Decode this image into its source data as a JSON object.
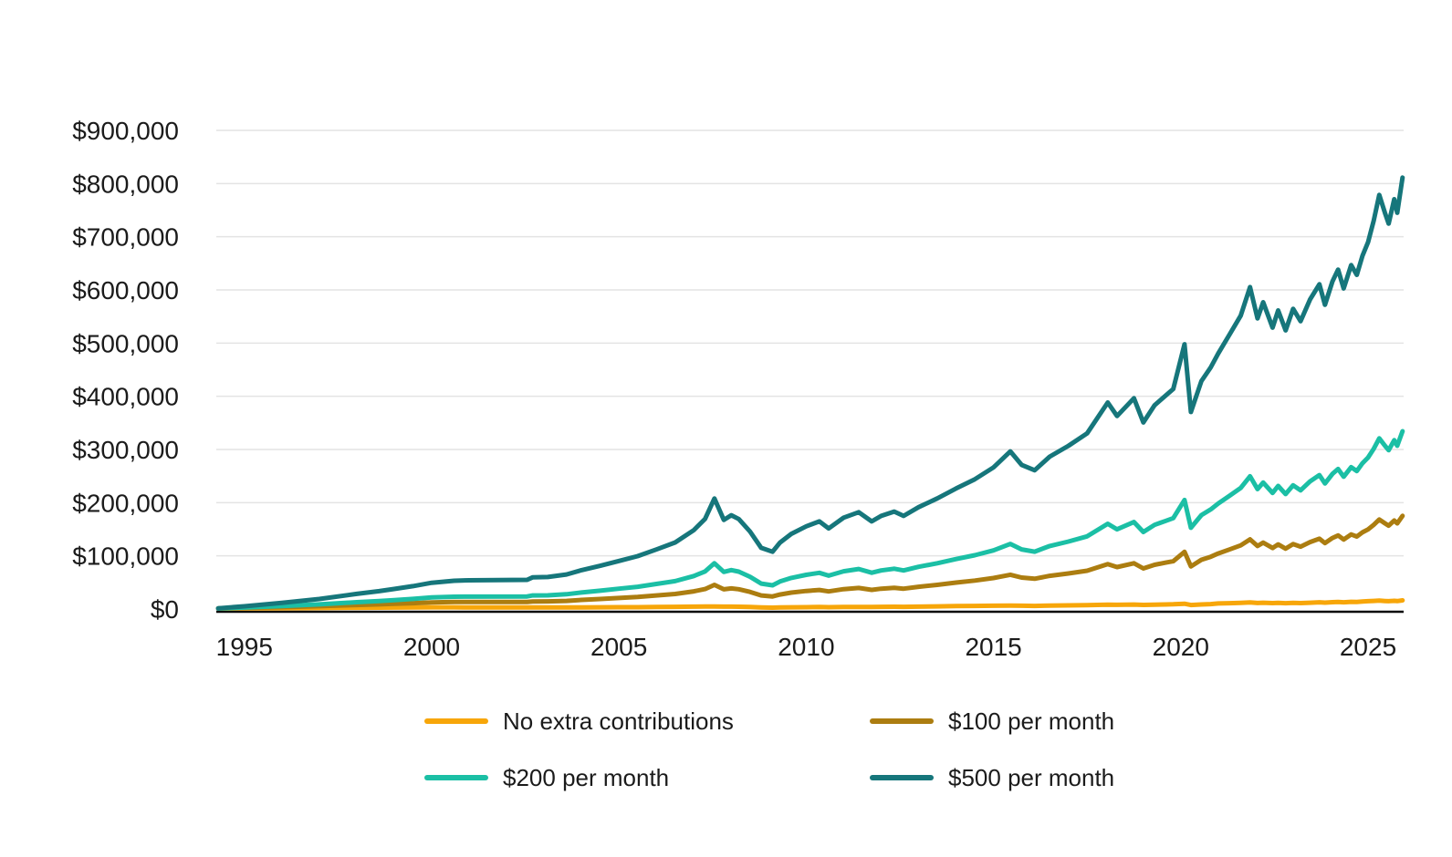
{
  "page": {
    "background_color": "#ffffff",
    "text_color": "#1b1b1b",
    "gridline_color": "#e4e4e4",
    "axis_line_color": "#0b0b0b"
  },
  "chart_data": {
    "type": "line",
    "title": "",
    "xlabel": "",
    "ylabel": "",
    "grid": true,
    "legend_position": "bottom",
    "x_axis": {
      "tick_labels": [
        "1995",
        "2000",
        "2005",
        "2010",
        "2015",
        "2020",
        "2025"
      ],
      "tick_values": [
        1995,
        2000,
        2005,
        2010,
        2015,
        2020,
        2025
      ],
      "range": [
        1994.25,
        2025.95
      ]
    },
    "y_axis": {
      "tick_labels": [
        "$0",
        "$100,000",
        "$200,000",
        "$300,000",
        "$400,000",
        "$500,000",
        "$600,000",
        "$700,000",
        "$800,000",
        "$900,000"
      ],
      "tick_values": [
        0,
        100000,
        200000,
        300000,
        400000,
        500000,
        600000,
        700000,
        800000,
        900000
      ],
      "range": [
        0,
        900000
      ]
    },
    "x": [
      1994.3,
      1995,
      1996,
      1997,
      1998,
      1998.6,
      1999,
      1999.5,
      2000,
      2000.6,
      2001,
      2002.55,
      2002.7,
      2003.1,
      2003.6,
      2004,
      2004.5,
      2005,
      2005.5,
      2006,
      2006.5,
      2007,
      2007.3,
      2007.55,
      2007.8,
      2008,
      2008.2,
      2008.5,
      2008.8,
      2009.1,
      2009.3,
      2009.6,
      2010,
      2010.35,
      2010.6,
      2011,
      2011.4,
      2011.75,
      2012,
      2012.35,
      2012.6,
      2013,
      2013.5,
      2014,
      2014.5,
      2015,
      2015.45,
      2015.75,
      2016.1,
      2016.5,
      2017,
      2017.5,
      2018.05,
      2018.3,
      2018.75,
      2019,
      2019.3,
      2019.6,
      2019.8,
      2020.1,
      2020.27,
      2020.55,
      2020.8,
      2021,
      2021.3,
      2021.6,
      2021.85,
      2022.05,
      2022.2,
      2022.45,
      2022.6,
      2022.8,
      2023,
      2023.2,
      2023.45,
      2023.7,
      2023.85,
      2024.05,
      2024.2,
      2024.35,
      2024.55,
      2024.7,
      2024.85,
      2025,
      2025.15,
      2025.3,
      2025.45,
      2025.55,
      2025.7,
      2025.78,
      2025.92
    ],
    "series": [
      {
        "name": "No extra contributions",
        "color": "#F7A609",
        "values": [
          1000,
          1200,
          1500,
          1900,
          2400,
          2600,
          2800,
          3000,
          3300,
          3200,
          3000,
          2900,
          2900,
          2900,
          2900,
          3100,
          3200,
          3400,
          3500,
          3900,
          4100,
          4400,
          4600,
          4800,
          4500,
          4400,
          4200,
          3800,
          3100,
          2600,
          2900,
          3200,
          3500,
          3700,
          3500,
          3800,
          4000,
          3800,
          4100,
          4200,
          4100,
          4500,
          4900,
          5600,
          5900,
          6200,
          6400,
          6100,
          5900,
          6400,
          6900,
          7400,
          8300,
          7900,
          8400,
          7700,
          8200,
          8600,
          8900,
          9900,
          7500,
          8600,
          9200,
          10400,
          11000,
          11700,
          12400,
          11400,
          11800,
          11100,
          11500,
          10900,
          11500,
          11200,
          11900,
          12600,
          12000,
          12900,
          13300,
          12700,
          13600,
          13300,
          14200,
          14700,
          15200,
          15700,
          15100,
          14700,
          15500,
          15000,
          16200
        ]
      },
      {
        "name": "$100 per month",
        "color": "#AC7D10",
        "values": [
          1100,
          2000,
          3500,
          5300,
          7600,
          8800,
          9800,
          11000,
          12500,
          13200,
          13200,
          13300,
          14300,
          14400,
          15300,
          17100,
          18800,
          20800,
          22700,
          25500,
          28300,
          33200,
          37600,
          45400,
          37100,
          38800,
          37200,
          32200,
          25500,
          23600,
          27300,
          30800,
          33900,
          35900,
          33100,
          37400,
          39600,
          36000,
          38300,
          40000,
          38300,
          41900,
          45500,
          49800,
          53500,
          58200,
          64400,
          59100,
          56900,
          62400,
          66900,
          72000,
          84300,
          78900,
          86000,
          76300,
          83200,
          87200,
          89900,
          107500,
          80100,
          92600,
          98200,
          104400,
          112000,
          119700,
          131000,
          118400,
          124800,
          114700,
          121500,
          113500,
          122100,
          117200,
          125900,
          132200,
          124000,
          133500,
          138300,
          130700,
          140200,
          136300,
          144200,
          149700,
          158200,
          168300,
          161100,
          156700,
          166500,
          161000,
          175200
        ]
      },
      {
        "name": "$200 per month",
        "color": "#1BBFA5",
        "values": [
          1100,
          2800,
          5500,
          8700,
          12800,
          15000,
          16800,
          19000,
          21700,
          23200,
          23400,
          23700,
          25600,
          25800,
          27700,
          31100,
          34400,
          38200,
          41900,
          47100,
          52500,
          62000,
          70600,
          86000,
          69700,
          73200,
          70200,
          60600,
          47900,
          44600,
          51700,
          58400,
          64300,
          68100,
          62700,
          71000,
          75200,
          68200,
          72500,
          75800,
          72500,
          79300,
          86100,
          94000,
          101100,
          110200,
          122400,
          112100,
          107900,
          118400,
          126900,
          136600,
          160300,
          149900,
          163600,
          144900,
          158200,
          165800,
          170900,
          205100,
          152700,
          176600,
          187200,
          198400,
          213000,
          227700,
          249600,
          225400,
          237800,
          218300,
          231500,
          216100,
          232700,
          223200,
          239900,
          251800,
          236000,
          254100,
          263300,
          248700,
          266800,
          259300,
          274200,
          284700,
          301200,
          320900,
          307100,
          298700,
          317500,
          307000,
          334200
        ]
      },
      {
        "name": "$500 per month",
        "color": "#16767B",
        "values": [
          1300,
          5200,
          11500,
          18900,
          28400,
          33600,
          37800,
          43000,
          49300,
          53200,
          54000,
          54900,
          59700,
          60200,
          64900,
          73100,
          81200,
          90400,
          99500,
          111900,
          125100,
          148400,
          169600,
          207800,
          167500,
          176400,
          169200,
          145800,
          115100,
          107600,
          124900,
          141200,
          155500,
          164700,
          151500,
          171800,
          182000,
          164800,
          175100,
          183200,
          175100,
          191500,
          207900,
          226600,
          243900,
          266200,
          296400,
          271100,
          260900,
          286400,
          306900,
          330400,
          388300,
          362900,
          396400,
          350700,
          383200,
          401600,
          413900,
          497900,
          370500,
          428600,
          454200,
          480400,
          516000,
          551700,
          605400,
          546400,
          576800,
          529100,
          561500,
          523900,
          564500,
          541200,
          581900,
          610600,
          572000,
          615900,
          638300,
          602700,
          646600,
          628300,
          664200,
          689700,
          730200,
          778700,
          745100,
          724700,
          770500,
          745000,
          811200
        ]
      }
    ]
  },
  "legend": {
    "items": [
      {
        "label": "No extra contributions",
        "color": "#F7A609"
      },
      {
        "label": "$100 per month",
        "color": "#AC7D10"
      },
      {
        "label": "$200 per month",
        "color": "#1BBFA5"
      },
      {
        "label": "$500 per month",
        "color": "#16767B"
      }
    ]
  }
}
